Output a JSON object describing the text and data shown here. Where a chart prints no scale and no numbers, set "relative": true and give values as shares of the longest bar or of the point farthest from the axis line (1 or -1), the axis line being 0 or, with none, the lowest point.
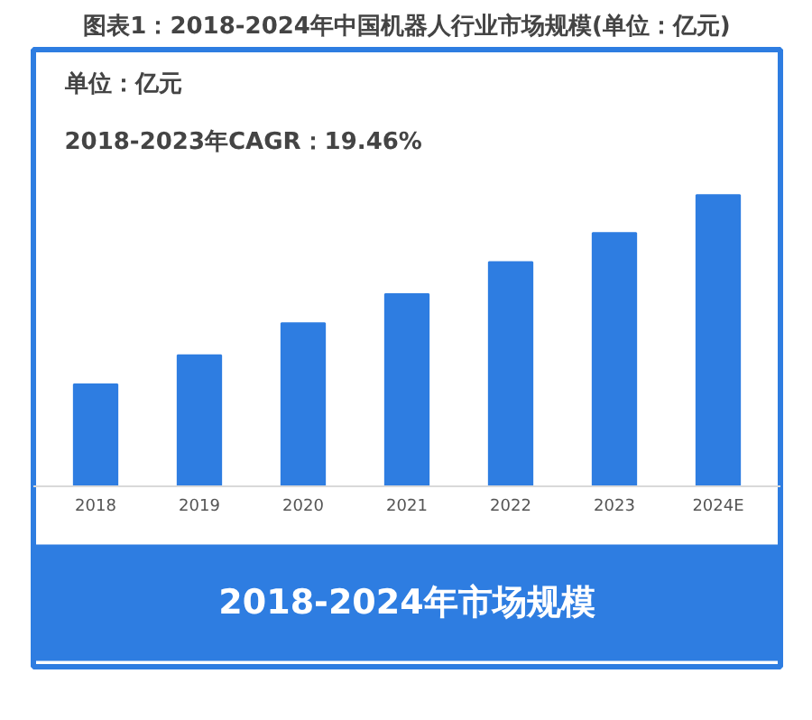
{
  "chart_data": {
    "type": "bar",
    "title": "图表1：2018-2024年中国机器人行业市场规模(单位：亿元)",
    "xlabel": "2018-2024年市场规模",
    "categories": [
      "2018",
      "2019",
      "2020",
      "2021",
      "2022",
      "2023",
      "2024E"
    ],
    "values": [
      0.35,
      0.45,
      0.56,
      0.66,
      0.77,
      0.87,
      1
    ],
    "color": "#2e7de1",
    "relative": true,
    "grid": false,
    "annotations": [
      "单位：亿元",
      "2018-2023年CAGR：19.46%"
    ]
  }
}
